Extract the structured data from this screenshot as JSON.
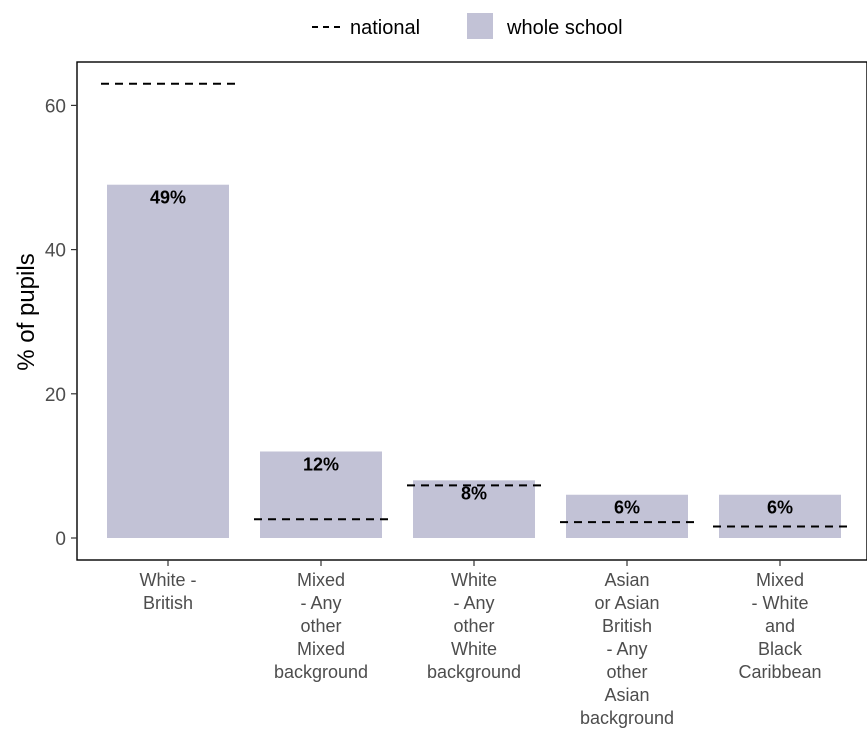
{
  "chart_data": {
    "type": "bar",
    "title": "",
    "xlabel": "",
    "ylabel": "% of pupils",
    "ylim": [
      0,
      65
    ],
    "yticks": [
      0,
      20,
      40,
      60
    ],
    "grid": false,
    "legend_position": "top",
    "colors": {
      "bar": "#c2c2d6",
      "national": "#000000"
    },
    "categories": [
      [
        "White -",
        "British"
      ],
      [
        "Mixed",
        "- Any",
        "other",
        "Mixed",
        "background"
      ],
      [
        "White",
        "- Any",
        "other",
        "White",
        "background"
      ],
      [
        "Asian",
        "or Asian",
        "British",
        "- Any",
        "other",
        "Asian",
        "background"
      ],
      [
        "Mixed",
        "- White",
        "and",
        "Black",
        "Caribbean"
      ]
    ],
    "series": [
      {
        "name": "whole school",
        "kind": "bar",
        "values": [
          49,
          12,
          8,
          6,
          6
        ]
      },
      {
        "name": "national",
        "kind": "dashed-line",
        "values": [
          63,
          2.6,
          7.3,
          2.2,
          1.6
        ]
      }
    ],
    "data_labels": [
      "49%",
      "12%",
      "8%",
      "6%",
      "6%"
    ]
  }
}
